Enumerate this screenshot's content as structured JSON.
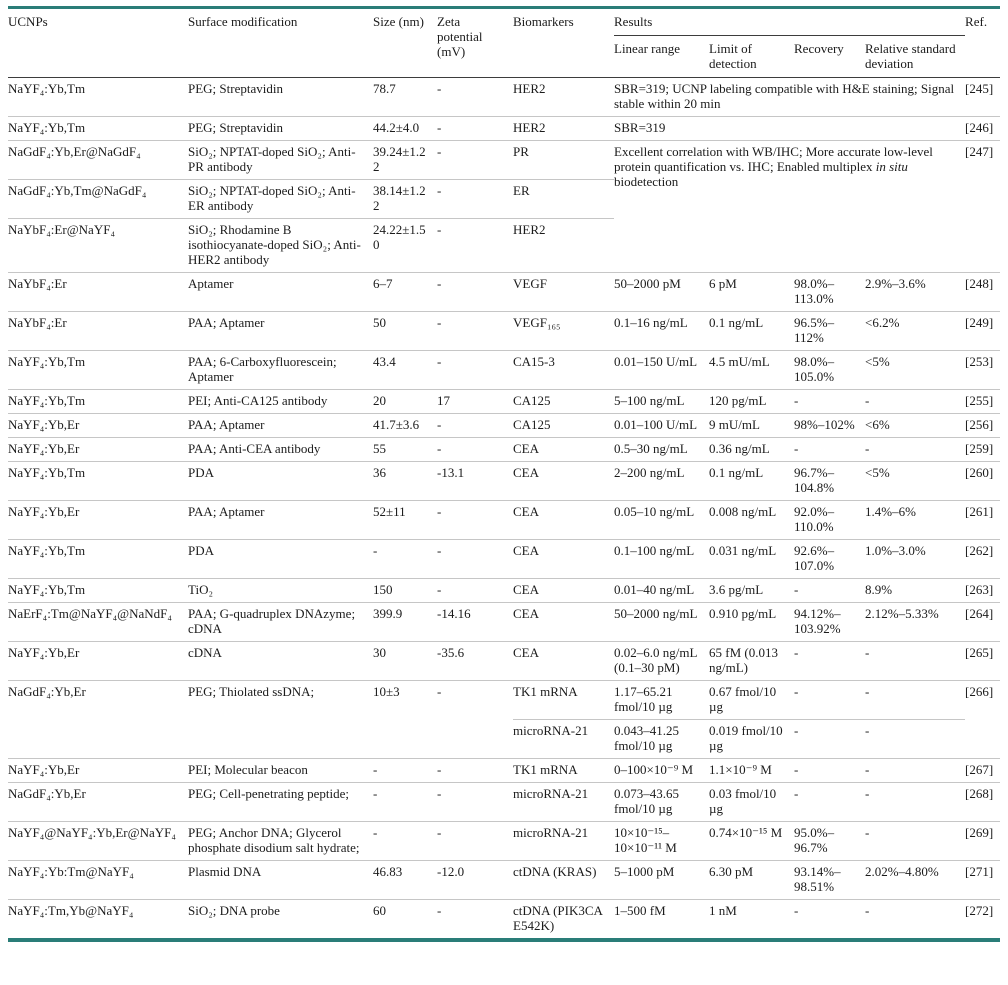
{
  "table": {
    "accent_color": "#2a7d78",
    "header": {
      "ucnps": "UCNPs",
      "surface": "Surface modification",
      "size": "Size (nm)",
      "zeta": "Zeta potential (mV)",
      "biomarkers": "Biomarkers",
      "results": "Results",
      "ref": "Ref.",
      "sub": {
        "linear": "Linear range",
        "lod": "Limit of detection",
        "recovery": "Recovery",
        "rsd": "Relative standard deviation"
      }
    },
    "rows": [
      [
        "NaYF₄:Yb,Tm",
        "PEG; Streptavidin",
        "78.7",
        "-",
        "HER2",
        {
          "v": "SBR=319; UCNP labeling compatible with H&E staining; Signal stable within 20 min",
          "cs": 4
        },
        "[245]"
      ],
      [
        "NaYF₄:Yb,Tm",
        "PEG; Streptavidin",
        "44.2±4.0",
        "-",
        "HER2",
        {
          "v": "SBR=319",
          "cs": 4
        },
        "[246]"
      ],
      [
        "NaGdF₄:Yb,Er@NaGdF₄",
        "SiO₂; NPTAT-doped SiO₂; Anti-PR antibody",
        "39.24±1.22",
        "-",
        "PR",
        {
          "v": "Excellent correlation with WB/IHC; More accurate low-level protein quantification vs. IHC; Enabled multiplex *in situ* biodetection",
          "cs": 4,
          "rs": 3
        },
        {
          "v": "[247]",
          "rs": 3
        }
      ],
      [
        "NaGdF₄:Yb,Tm@NaGdF₄",
        "SiO₂; NPTAT-doped SiO₂; Anti-ER antibody",
        "38.14±1.22",
        "-",
        "ER"
      ],
      [
        "NaYbF₄:Er@NaYF₄",
        "SiO₂; Rhodamine B isothiocyanate-doped SiO₂; Anti-HER2 antibody",
        "24.22±1.50",
        "-",
        "HER2"
      ],
      [
        "NaYbF₄:Er",
        "Aptamer",
        "6–7",
        "-",
        "VEGF",
        "50–2000 pM",
        "6 pM",
        "98.0%–113.0%",
        "2.9%–3.6%",
        "[248]"
      ],
      [
        "NaYbF₄:Er",
        "PAA; Aptamer",
        "50",
        "-",
        "VEGF₁₆₅",
        "0.1–16 ng/mL",
        "0.1 ng/mL",
        "96.5%–112%",
        "<6.2%",
        "[249]"
      ],
      [
        "NaYF₄:Yb,Tm",
        "PAA; 6-Carboxyfluorescein; Aptamer",
        "43.4",
        "-",
        "CA15-3",
        "0.01–150 U/mL",
        "4.5 mU/mL",
        "98.0%–105.0%",
        "<5%",
        "[253]"
      ],
      [
        "NaYF₄:Yb,Tm",
        "PEI; Anti-CA125 antibody",
        "20",
        "17",
        "CA125",
        "5–100 ng/mL",
        "120 pg/mL",
        "-",
        "-",
        "[255]"
      ],
      [
        "NaYF₄:Yb,Er",
        "PAA; Aptamer",
        "41.7±3.6",
        "-",
        "CA125",
        "0.01–100 U/mL",
        "9 mU/mL",
        "98%–102%",
        "<6%",
        "[256]"
      ],
      [
        "NaYF₄:Yb,Er",
        "PAA; Anti-CEA antibody",
        "55",
        "-",
        "CEA",
        "0.5–30 ng/mL",
        "0.36 ng/mL",
        "-",
        "-",
        "[259]"
      ],
      [
        "NaYF₄:Yb,Tm",
        "PDA",
        "36",
        "-13.1",
        "CEA",
        "2–200 ng/mL",
        "0.1 ng/mL",
        "96.7%–104.8%",
        "<5%",
        "[260]"
      ],
      [
        "NaYF₄:Yb,Er",
        "PAA; Aptamer",
        "52±11",
        "-",
        "CEA",
        "0.05–10 ng/mL",
        "0.008 ng/mL",
        "92.0%–110.0%",
        "1.4%–6%",
        "[261]"
      ],
      [
        "NaYF₄:Yb,Tm",
        "PDA",
        "-",
        "-",
        "CEA",
        "0.1–100 ng/mL",
        "0.031 ng/mL",
        "92.6%–107.0%",
        "1.0%–3.0%",
        "[262]"
      ],
      [
        "NaYF₄:Yb,Tm",
        "TiO₂",
        "150",
        "-",
        "CEA",
        "0.01–40 ng/mL",
        "3.6 pg/mL",
        "-",
        "8.9%",
        "[263]"
      ],
      [
        "NaErF₄:Tm@NaYF₄@NaNdF₄",
        "PAA; G-quadruplex DNAzyme; cDNA",
        "399.9",
        "-14.16",
        "CEA",
        "50–2000 ng/mL",
        "0.910 pg/mL",
        "94.12%–103.92%",
        "2.12%–5.33%",
        "[264]"
      ],
      [
        "NaYF₄:Yb,Er",
        "cDNA",
        "30",
        "-35.6",
        "CEA",
        "0.02–6.0 ng/mL (0.1–30 pM)",
        "65 fM (0.013 ng/mL)",
        "-",
        "-",
        "[265]"
      ],
      [
        {
          "v": "NaGdF₄:Yb,Er",
          "rs": 2
        },
        {
          "v": "PEG; Thiolated ssDNA;",
          "rs": 2
        },
        {
          "v": "10±3",
          "rs": 2
        },
        {
          "v": "-",
          "rs": 2
        },
        "TK1 mRNA",
        "1.17–65.21 fmol/10 µg",
        "0.67 fmol/10 µg",
        "-",
        "-",
        {
          "v": "[266]",
          "rs": 2
        }
      ],
      [
        "microRNA-21",
        "0.043–41.25 fmol/10 µg",
        "0.019 fmol/10 µg",
        "-",
        "-"
      ],
      [
        "NaYF₄:Yb,Er",
        "PEI; Molecular beacon",
        "-",
        "-",
        "TK1 mRNA",
        "0–100×10⁻⁹ M",
        "1.1×10⁻⁹ M",
        "-",
        "-",
        "[267]"
      ],
      [
        "NaGdF₄:Yb,Er",
        "PEG; Cell-penetrating peptide;",
        "-",
        "-",
        "microRNA-21",
        "0.073–43.65 fmol/10 µg",
        "0.03 fmol/10 µg",
        "-",
        "-",
        "[268]"
      ],
      [
        "NaYF₄@NaYF₄:Yb,Er@NaYF₄",
        "PEG; Anchor DNA; Glycerol phosphate disodium salt hydrate;",
        "-",
        "-",
        "microRNA-21",
        "10×10⁻¹⁵–10×10⁻¹¹ M",
        "0.74×10⁻¹⁵ M",
        "95.0%–96.7%",
        "-",
        "[269]"
      ],
      [
        "NaYF₄:Yb:Tm@NaYF₄",
        "Plasmid DNA",
        "46.83",
        "-12.0",
        "ctDNA (KRAS)",
        "5–1000 pM",
        "6.30 pM",
        "93.14%–98.51%",
        "2.02%–4.80%",
        "[271]"
      ],
      [
        "NaYF₄:Tm,Yb@NaYF₄",
        "SiO₂; DNA probe",
        "60",
        "-",
        "ctDNA (PIK3CA E542K)",
        "1–500 fM",
        "1 nM",
        "-",
        "-",
        "[272]"
      ]
    ]
  }
}
